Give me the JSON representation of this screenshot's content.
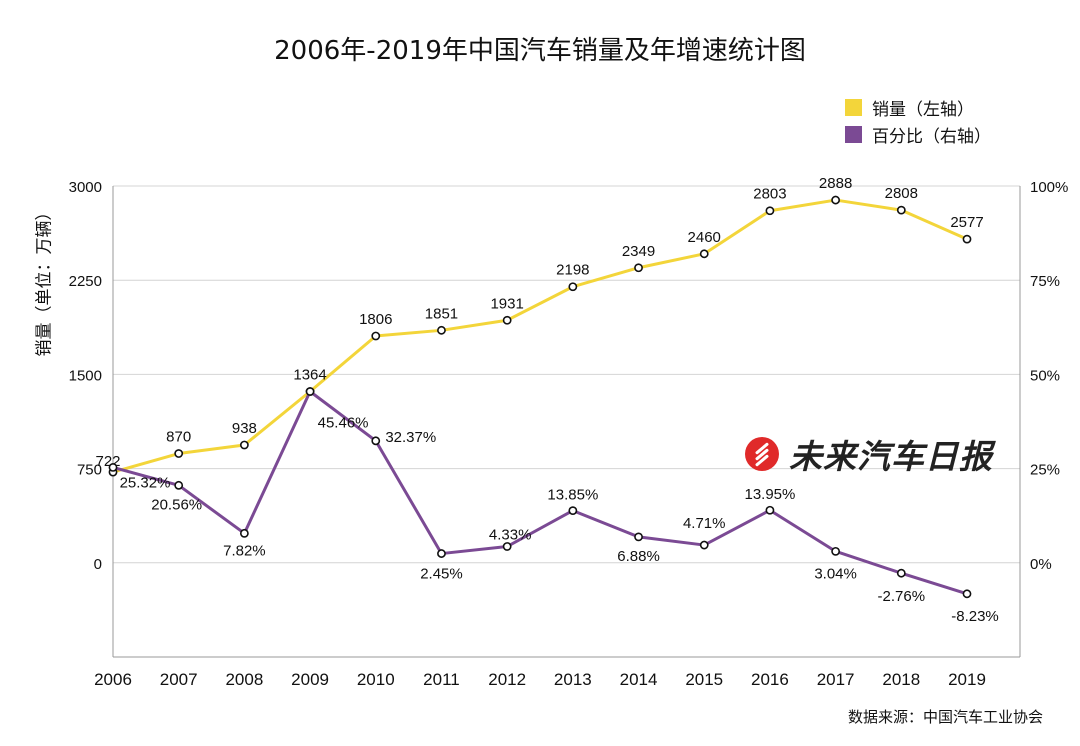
{
  "chart_data": {
    "type": "line",
    "title": "2006年-2019年中国汽车销量及年增速统计图",
    "ylabel": "销量（单位：万辆）",
    "source": "数据来源：中国汽车工业协会",
    "watermark": "未来汽车日报",
    "categories": [
      "2006",
      "2007",
      "2008",
      "2009",
      "2010",
      "2011",
      "2012",
      "2013",
      "2014",
      "2015",
      "2016",
      "2017",
      "2018",
      "2019"
    ],
    "left_axis": {
      "ylim": [
        -750,
        3000
      ],
      "ticks": [
        "3000",
        "2250",
        "1500",
        "750",
        "0"
      ],
      "tick_values": [
        3000,
        2250,
        1500,
        750,
        0
      ]
    },
    "right_axis": {
      "ylim": [
        -25,
        100
      ],
      "ticks": [
        "100%",
        "75%",
        "50%",
        "25%",
        "0%"
      ],
      "tick_values": [
        100,
        75,
        50,
        25,
        0
      ]
    },
    "grid": true,
    "legend_position": "top-right",
    "series": [
      {
        "name": "销量（左轴）",
        "axis": "left",
        "color": "#f3d53a",
        "values": [
          722,
          870,
          938,
          1364,
          1806,
          1851,
          1931,
          2198,
          2349,
          2460,
          2803,
          2888,
          2808,
          2577
        ],
        "labels": [
          "722",
          "870",
          "938",
          "1364",
          "1806",
          "1851",
          "1931",
          "2198",
          "2349",
          "2460",
          "2803",
          "2888",
          "2808",
          "2577"
        ]
      },
      {
        "name": "百分比（右轴）",
        "axis": "right",
        "color": "#7b4a94",
        "values": [
          25.32,
          20.56,
          7.82,
          45.46,
          32.37,
          2.45,
          4.33,
          13.85,
          6.88,
          4.71,
          13.95,
          3.04,
          -2.76,
          -8.23
        ],
        "labels": [
          "25.32%",
          "20.56%",
          "7.82%",
          "45.46%",
          "32.37%",
          "2.45%",
          "4.33%",
          "13.85%",
          "6.88%",
          "4.71%",
          "13.95%",
          "3.04%",
          "-2.76%",
          "-8.23%"
        ]
      }
    ]
  }
}
